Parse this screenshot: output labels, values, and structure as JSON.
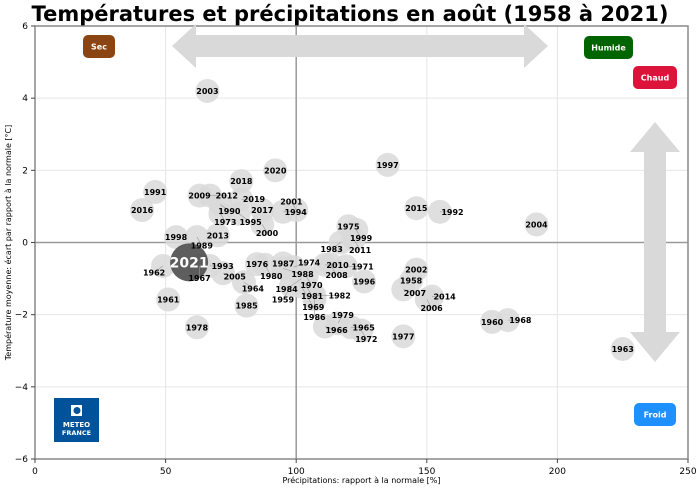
{
  "chart_data": {
    "type": "scatter",
    "title": "Températures et précipitations en août (1958 à 2021)",
    "xlabel": "Précipitations: rapport à la normale [%]",
    "ylabel": "Température moyenne: écart par rapport à la normale [°C]",
    "xlim": [
      0,
      250
    ],
    "ylim": [
      -6,
      6
    ],
    "xticks": [
      0,
      50,
      100,
      150,
      200,
      250
    ],
    "yticks": [
      -6,
      -4,
      -2,
      0,
      2,
      4,
      6
    ],
    "grid": true,
    "reference_lines": {
      "x": 100,
      "y": 0
    },
    "highlight": "2021",
    "colors": {
      "bubble": "#d9d9d9",
      "highlight": "#4d4d4d",
      "sec": "#8b4513",
      "humide": "#006400",
      "chaud": "#dc143c",
      "froid": "#1e90ff",
      "arrow": "#d9d9d9",
      "logo": "#00539b"
    },
    "points": [
      {
        "year": "2003",
        "x": 66,
        "y": 4.2
      },
      {
        "year": "1997",
        "x": 135,
        "y": 2.15
      },
      {
        "year": "2020",
        "x": 92,
        "y": 2.0
      },
      {
        "year": "2018",
        "x": 79,
        "y": 1.7
      },
      {
        "year": "1991",
        "x": 46,
        "y": 1.4
      },
      {
        "year": "2009",
        "x": 63,
        "y": 1.3
      },
      {
        "year": "2012",
        "x": 67,
        "y": 1.3
      },
      {
        "year": "2019",
        "x": 79,
        "y": 1.2
      },
      {
        "year": "1990",
        "x": 71,
        "y": 1.05
      },
      {
        "year": "2016",
        "x": 41,
        "y": 0.9
      },
      {
        "year": "2017",
        "x": 87,
        "y": 0.9
      },
      {
        "year": "1973",
        "x": 71,
        "y": 0.8
      },
      {
        "year": "1995",
        "x": 78,
        "y": 0.8
      },
      {
        "year": "1994",
        "x": 95,
        "y": 0.85
      },
      {
        "year": "2001",
        "x": 100,
        "y": 0.9
      },
      {
        "year": "2015",
        "x": 146,
        "y": 0.95
      },
      {
        "year": "1992",
        "x": 155,
        "y": 0.85
      },
      {
        "year": "2004",
        "x": 192,
        "y": 0.5
      },
      {
        "year": "1975",
        "x": 120,
        "y": 0.45
      },
      {
        "year": "1999",
        "x": 123,
        "y": 0.35
      },
      {
        "year": "2000",
        "x": 87,
        "y": 0.5
      },
      {
        "year": "2013",
        "x": 70,
        "y": 0.2
      },
      {
        "year": "1998",
        "x": 54,
        "y": 0.15
      },
      {
        "year": "1989",
        "x": 62,
        "y": 0.15
      },
      {
        "year": "2011",
        "x": 122,
        "y": 0.1
      },
      {
        "year": "1983",
        "x": 117,
        "y": 0.0
      },
      {
        "year": "1962",
        "x": 49,
        "y": -0.65
      },
      {
        "year": "1967",
        "x": 63,
        "y": -0.65
      },
      {
        "year": "1993",
        "x": 67,
        "y": -0.65
      },
      {
        "year": "2005",
        "x": 72,
        "y": -0.85
      },
      {
        "year": "1976",
        "x": 85,
        "y": -0.6
      },
      {
        "year": "1980",
        "x": 88,
        "y": -0.62
      },
      {
        "year": "1987",
        "x": 95,
        "y": -0.58
      },
      {
        "year": "1988",
        "x": 95,
        "y": -0.72
      },
      {
        "year": "1974",
        "x": 99,
        "y": -0.68
      },
      {
        "year": "2010",
        "x": 111,
        "y": -0.62
      },
      {
        "year": "2008",
        "x": 113,
        "y": -0.6
      },
      {
        "year": "1971",
        "x": 119,
        "y": -0.66
      },
      {
        "year": "2002",
        "x": 146,
        "y": -0.75
      },
      {
        "year": "1958",
        "x": 144,
        "y": -1.05
      },
      {
        "year": "1996",
        "x": 126,
        "y": -1.08
      },
      {
        "year": "1964",
        "x": 80,
        "y": -1.1
      },
      {
        "year": "1970",
        "x": 104,
        "y": -0.95
      },
      {
        "year": "1984",
        "x": 102,
        "y": -1.0
      },
      {
        "year": "1981",
        "x": 103,
        "y": -1.1
      },
      {
        "year": "1959",
        "x": 98,
        "y": -1.2
      },
      {
        "year": "1969",
        "x": 102,
        "y": -1.22
      },
      {
        "year": "2007",
        "x": 141,
        "y": -1.3
      },
      {
        "year": "2014",
        "x": 152,
        "y": -1.5
      },
      {
        "year": "2006",
        "x": 150,
        "y": -1.58
      },
      {
        "year": "1982",
        "x": 107,
        "y": -1.47
      },
      {
        "year": "1986",
        "x": 107,
        "y": -1.57
      },
      {
        "year": "1961",
        "x": 51,
        "y": -1.58
      },
      {
        "year": "1985",
        "x": 81,
        "y": -1.75
      },
      {
        "year": "1978",
        "x": 62,
        "y": -2.35
      },
      {
        "year": "1966",
        "x": 111,
        "y": -2.33
      },
      {
        "year": "1979",
        "x": 116,
        "y": -2.24
      },
      {
        "year": "1965",
        "x": 121,
        "y": -2.35
      },
      {
        "year": "1972",
        "x": 125,
        "y": -2.44
      },
      {
        "year": "1977",
        "x": 141,
        "y": -2.6
      },
      {
        "year": "1960",
        "x": 175,
        "y": -2.2
      },
      {
        "year": "1968",
        "x": 181,
        "y": -2.15
      },
      {
        "year": "1963",
        "x": 225,
        "y": -2.95
      },
      {
        "year": "2021",
        "x": 59,
        "y": -0.55
      }
    ],
    "annotations": {
      "sec": "Sec",
      "humide": "Humide",
      "chaud": "Chaud",
      "froid": "Froid"
    },
    "logo": "METEO FRANCE"
  }
}
